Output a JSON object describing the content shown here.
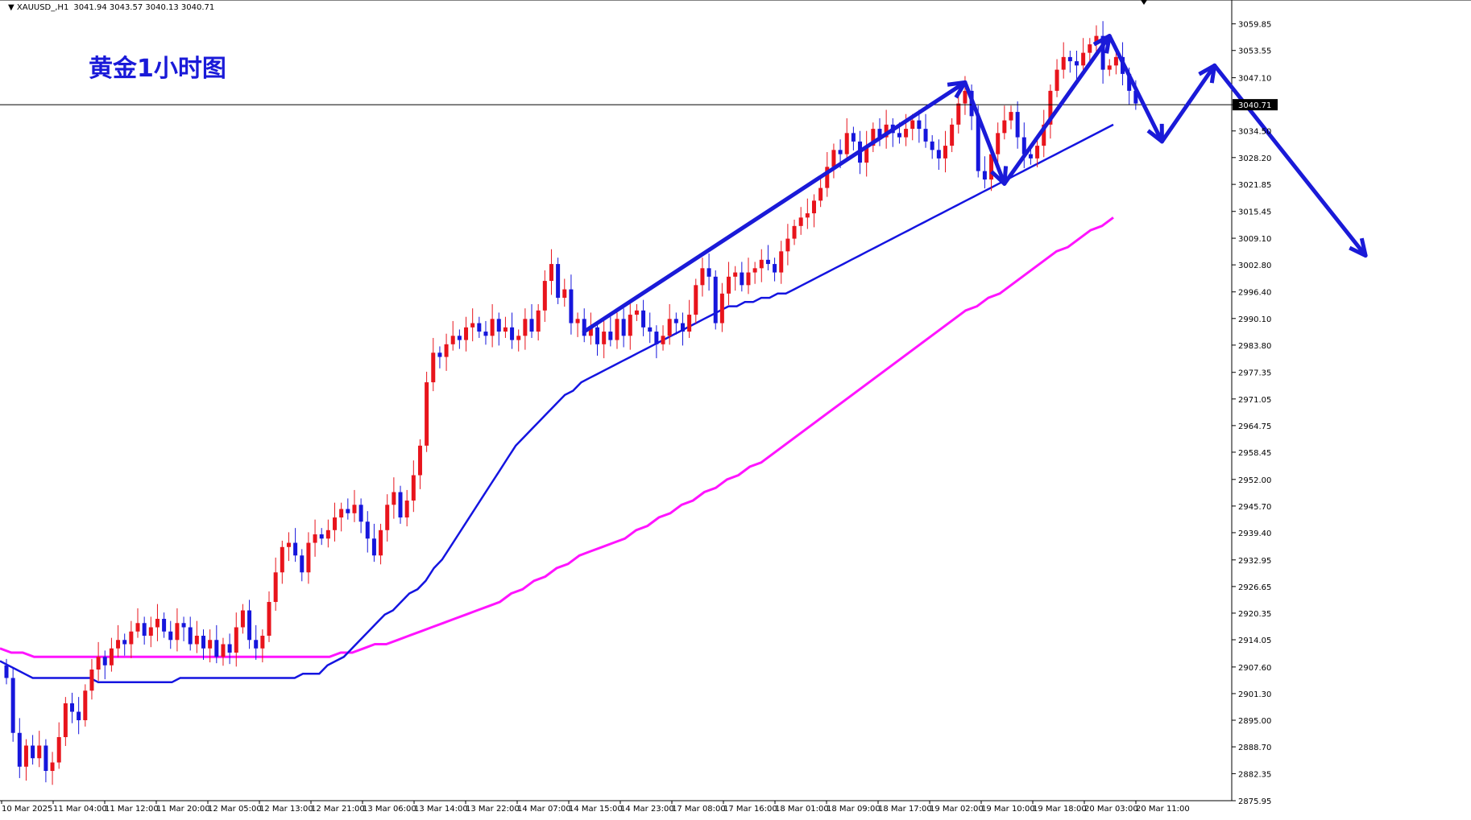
{
  "header": {
    "symbol": "XAUUSD_,H1",
    "ohlc": "3041.94 3043.57 3040.13 3040.71"
  },
  "annotation": {
    "title": "黄金1小时图"
  },
  "current_price": "3040.71",
  "colors": {
    "background": "#ffffff",
    "bull": "#e8141c",
    "bear": "#1616dc",
    "ma_fast": "#1414e0",
    "ma_slow": "#ff14ff",
    "arrows": "#1a1ad8",
    "price_line": "#000000"
  },
  "chart_data": {
    "type": "candlestick",
    "ylim": [
      2875.95,
      3065.5
    ],
    "y_ticks": [
      "3059.85",
      "3053.55",
      "3047.10",
      "3040.71",
      "3034.50",
      "3028.20",
      "3021.85",
      "3015.45",
      "3009.10",
      "3002.80",
      "2996.40",
      "2990.10",
      "2983.80",
      "2977.35",
      "2971.05",
      "2964.75",
      "2958.45",
      "2952.00",
      "2945.70",
      "2939.40",
      "2932.95",
      "2926.65",
      "2920.35",
      "2914.05",
      "2907.60",
      "2901.30",
      "2895.00",
      "2888.70",
      "2882.35",
      "2875.95"
    ],
    "x_ticks": [
      "10 Mar 2025",
      "11 Mar 04:00",
      "11 Mar 12:00",
      "11 Mar 20:00",
      "12 Mar 05:00",
      "12 Mar 13:00",
      "12 Mar 21:00",
      "13 Mar 06:00",
      "13 Mar 14:00",
      "13 Mar 22:00",
      "14 Mar 07:00",
      "14 Mar 15:00",
      "14 Mar 23:00",
      "17 Mar 08:00",
      "17 Mar 16:00",
      "18 Mar 01:00",
      "18 Mar 09:00",
      "18 Mar 17:00",
      "19 Mar 02:00",
      "19 Mar 10:00",
      "19 Mar 18:00",
      "20 Mar 03:00",
      "20 Mar 11:00"
    ],
    "closes": [
      2905,
      2892,
      2884,
      2889,
      2886,
      2889,
      2883,
      2885,
      2891,
      2899,
      2897,
      2895,
      2902,
      2907,
      2910,
      2908,
      2912,
      2914,
      2913,
      2916,
      2918,
      2915,
      2917,
      2919,
      2916,
      2914,
      2918,
      2917,
      2913,
      2915,
      2912,
      2914,
      2910,
      2913,
      2911,
      2917,
      2921,
      2914,
      2912,
      2915,
      2923,
      2930,
      2936,
      2937,
      2934,
      2930,
      2937,
      2939,
      2938,
      2940,
      2943,
      2945,
      2944,
      2946,
      2942,
      2938,
      2934,
      2940,
      2946,
      2949,
      2943,
      2947,
      2953,
      2960,
      2975,
      2982,
      2981,
      2984,
      2986,
      2985,
      2988,
      2989,
      2987,
      2986,
      2990,
      2987,
      2988,
      2985,
      2986,
      2990,
      2987,
      2992,
      2999,
      3003,
      2995,
      2997,
      2989,
      2990,
      2986,
      2988,
      2984,
      2987,
      2985,
      2990,
      2986,
      2991,
      2992,
      2988,
      2987,
      2984,
      2986,
      2990,
      2989,
      2987,
      2991,
      2998,
      3002,
      3000,
      2989,
      2996,
      3000,
      3001,
      2998,
      3001,
      3002,
      3004,
      3003,
      3001,
      3006,
      3009,
      3012,
      3014,
      3015,
      3018,
      3021,
      3026,
      3030,
      3029,
      3034,
      3032,
      3027,
      3031,
      3035,
      3033,
      3036,
      3034,
      3033,
      3035,
      3037,
      3035,
      3032,
      3030,
      3028,
      3031,
      3036,
      3041,
      3044,
      3038,
      3025,
      3023,
      3029,
      3034,
      3037,
      3039,
      3033,
      3029,
      3028,
      3031,
      3036,
      3044,
      3049,
      3052,
      3051,
      3050,
      3053,
      3055,
      3057,
      3049,
      3050,
      3052,
      3048,
      3044,
      3041
    ],
    "ma_fast": [
      2909,
      2908,
      2907,
      2906,
      2905,
      2905,
      2905,
      2905,
      2905,
      2905,
      2905,
      2905,
      2904,
      2904,
      2904,
      2904,
      2904,
      2904,
      2904,
      2904,
      2904,
      2904,
      2905,
      2905,
      2905,
      2905,
      2905,
      2905,
      2905,
      2905,
      2905,
      2905,
      2905,
      2905,
      2905,
      2905,
      2905,
      2906,
      2906,
      2906,
      2908,
      2909,
      2910,
      2912,
      2914,
      2916,
      2918,
      2920,
      2921,
      2923,
      2925,
      2926,
      2928,
      2931,
      2933,
      2936,
      2939,
      2942,
      2945,
      2948,
      2951,
      2954,
      2957,
      2960,
      2962,
      2964,
      2966,
      2968,
      2970,
      2972,
      2973,
      2975,
      2976,
      2977,
      2978,
      2979,
      2980,
      2981,
      2982,
      2983,
      2984,
      2985,
      2986,
      2987,
      2988,
      2989,
      2990,
      2991,
      2992,
      2993,
      2993,
      2994,
      2994,
      2995,
      2995,
      2996,
      2996,
      2997,
      2998,
      2999,
      3000,
      3001,
      3002,
      3003,
      3004,
      3005,
      3006,
      3007,
      3008,
      3009,
      3010,
      3011,
      3012,
      3013,
      3014,
      3015,
      3016,
      3017,
      3018,
      3019,
      3020,
      3021,
      3022,
      3023,
      3024,
      3025,
      3026,
      3027,
      3028,
      3029,
      3030,
      3031,
      3032,
      3033,
      3034,
      3035,
      3036
    ],
    "ma_slow": [
      2912,
      2911,
      2911,
      2910,
      2910,
      2910,
      2910,
      2910,
      2910,
      2910,
      2910,
      2910,
      2910,
      2910,
      2910,
      2910,
      2910,
      2910,
      2910,
      2910,
      2910,
      2910,
      2910,
      2910,
      2910,
      2910,
      2910,
      2910,
      2910,
      2910,
      2911,
      2911,
      2912,
      2913,
      2913,
      2914,
      2915,
      2916,
      2917,
      2918,
      2919,
      2920,
      2921,
      2922,
      2923,
      2925,
      2926,
      2928,
      2929,
      2931,
      2932,
      2934,
      2935,
      2936,
      2937,
      2938,
      2940,
      2941,
      2943,
      2944,
      2946,
      2947,
      2949,
      2950,
      2952,
      2953,
      2955,
      2956,
      2958,
      2960,
      2962,
      2964,
      2966,
      2968,
      2970,
      2972,
      2974,
      2976,
      2978,
      2980,
      2982,
      2984,
      2986,
      2988,
      2990,
      2992,
      2993,
      2995,
      2996,
      2998,
      3000,
      3002,
      3004,
      3006,
      3007,
      3009,
      3011,
      3012,
      3014
    ]
  }
}
